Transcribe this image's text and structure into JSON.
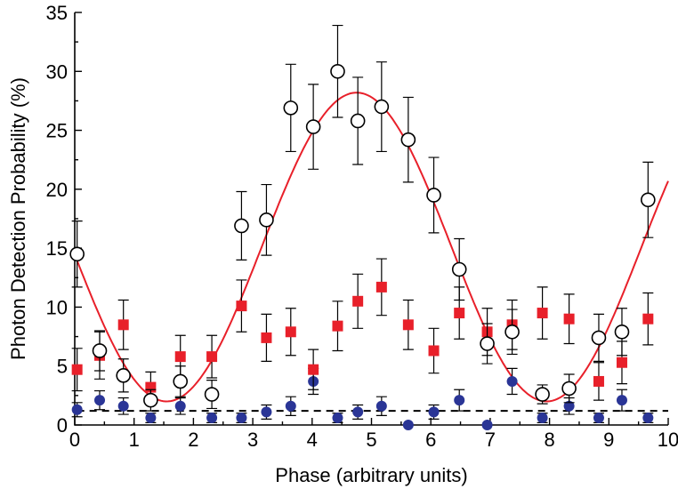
{
  "chart_data": {
    "type": "scatter",
    "title": "",
    "xlabel": "Phase (arbitrary units)",
    "ylabel": "Photon Detection Probability (%)",
    "xlim": [
      0,
      10
    ],
    "ylim": [
      0,
      35
    ],
    "xticks": [
      0,
      1,
      2,
      3,
      4,
      5,
      6,
      7,
      8,
      9,
      10
    ],
    "yticks": [
      0,
      5,
      10,
      15,
      20,
      25,
      30,
      35
    ],
    "grid": false,
    "colors": {
      "open_circles": "#000000",
      "red_squares": "#e8202a",
      "blue_circles": "#2a3596",
      "fit_curve": "#e8202a",
      "baseline": "#000000"
    },
    "series": [
      {
        "marker": "open-circle",
        "x": [
          0.04,
          0.42,
          0.82,
          1.28,
          1.78,
          2.31,
          2.81,
          3.23,
          3.64,
          4.02,
          4.43,
          4.77,
          5.17,
          5.62,
          6.05,
          6.48,
          6.95,
          7.37,
          7.88,
          8.33,
          8.83,
          9.22,
          9.66
        ],
        "y": [
          14.5,
          6.3,
          4.2,
          2.1,
          3.7,
          2.6,
          16.9,
          17.4,
          26.9,
          25.3,
          30.0,
          25.8,
          27.0,
          24.2,
          19.5,
          13.2,
          6.9,
          7.9,
          2.6,
          3.1,
          7.4,
          7.9,
          19.1
        ],
        "err": [
          2.8,
          1.7,
          1.4,
          0.9,
          1.3,
          1.2,
          2.9,
          3.0,
          3.7,
          3.6,
          3.9,
          3.7,
          3.8,
          3.6,
          3.2,
          2.6,
          1.7,
          1.9,
          0.8,
          1.2,
          2.0,
          2.0,
          3.2
        ]
      },
      {
        "marker": "red-square",
        "x": [
          0.04,
          0.42,
          0.82,
          1.28,
          1.78,
          2.31,
          2.81,
          3.23,
          3.64,
          4.02,
          4.43,
          4.77,
          5.17,
          5.62,
          6.05,
          6.48,
          6.95,
          7.37,
          7.88,
          8.33,
          8.83,
          9.22,
          9.66
        ],
        "y": [
          4.7,
          5.9,
          8.5,
          3.2,
          5.8,
          5.8,
          10.1,
          7.4,
          7.9,
          4.7,
          8.4,
          10.5,
          11.7,
          8.5,
          6.3,
          9.5,
          7.9,
          8.5,
          9.5,
          9.0,
          3.7,
          5.3,
          9.0
        ],
        "err": [
          1.8,
          2.0,
          2.1,
          1.3,
          1.8,
          1.8,
          2.2,
          2.0,
          2.0,
          1.7,
          2.1,
          2.3,
          2.4,
          2.1,
          1.9,
          2.2,
          2.0,
          2.1,
          2.2,
          2.1,
          1.6,
          1.8,
          2.2
        ]
      },
      {
        "marker": "blue-circle",
        "x": [
          0.04,
          0.42,
          0.82,
          1.28,
          1.78,
          2.31,
          2.81,
          3.23,
          3.64,
          4.02,
          4.43,
          4.77,
          5.17,
          5.62,
          6.05,
          6.48,
          6.95,
          7.37,
          7.88,
          8.33,
          8.83,
          9.22,
          9.66
        ],
        "y": [
          1.3,
          2.1,
          1.6,
          0.6,
          1.6,
          0.6,
          0.6,
          1.1,
          1.6,
          3.7,
          0.6,
          1.1,
          1.6,
          0.0,
          1.1,
          2.1,
          0.0,
          3.7,
          0.6,
          1.6,
          0.6,
          2.1,
          0.6
        ],
        "err": [
          0.6,
          0.8,
          0.7,
          0.4,
          0.7,
          0.4,
          0.4,
          0.6,
          0.8,
          1.1,
          0.4,
          0.6,
          0.8,
          0.0,
          0.6,
          0.9,
          0.0,
          1.1,
          0.4,
          0.7,
          0.4,
          0.9,
          0.4
        ]
      },
      {
        "marker": "line",
        "style": "solid",
        "fit": {
          "offset": 15.1,
          "amplitude": 13.1,
          "period": 6.4,
          "peak_x": 4.75
        },
        "x_range": [
          0.04,
          10.0
        ]
      },
      {
        "marker": "line",
        "style": "dashed",
        "constant": 1.2,
        "x_range": [
          0.04,
          10.0
        ]
      }
    ]
  }
}
